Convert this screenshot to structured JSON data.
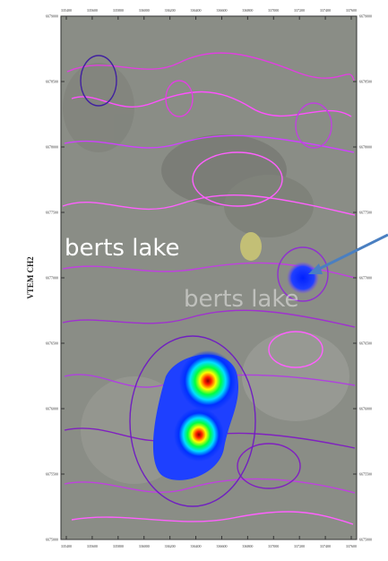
{
  "map": {
    "axis_label": "VTEM CH2",
    "x_ticks": [
      335400,
      335600,
      335800,
      336000,
      336200,
      336400,
      336600,
      336800,
      337000,
      337200,
      337400,
      337600
    ],
    "y_ticks": [
      6679000,
      6678500,
      6678000,
      6677500,
      6677000,
      6676500,
      6676000,
      6675500,
      6675000
    ],
    "lake_labels": [
      "berts lake",
      "berts lake"
    ]
  }
}
